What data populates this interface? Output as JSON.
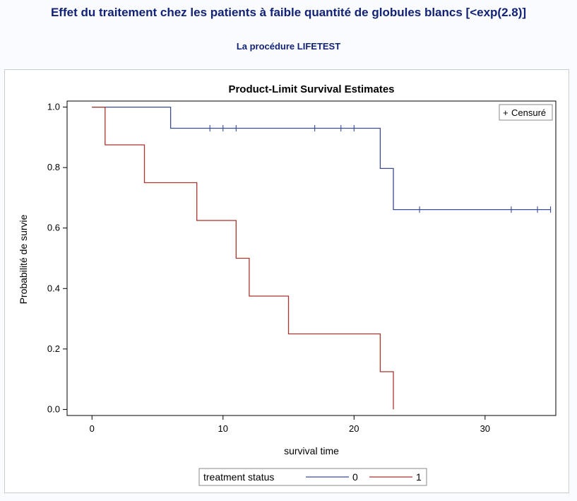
{
  "page": {
    "title": "Effet du traitement chez les patients à faible quantité de globules blancs [<exp(2.8)]",
    "subtitle": "La procédure LIFETEST"
  },
  "colors": {
    "title_text": "#112277",
    "series_0": "#3a4c94",
    "series_1": "#a8352e",
    "axis": "#000000",
    "frame_border": "#c8ccd6"
  },
  "chart_data": {
    "type": "line",
    "step": true,
    "title": "Product-Limit Survival Estimates",
    "xlabel": "survival time",
    "ylabel": "Probabilité de survie",
    "xlim": [
      -1.9,
      35.4
    ],
    "ylim": [
      -0.02,
      1.02
    ],
    "xticks": [
      0,
      10,
      20,
      30
    ],
    "yticks": [
      0.0,
      0.2,
      0.4,
      0.6,
      0.8,
      1.0
    ],
    "ytick_labels": [
      "0.0",
      "0.2",
      "0.4",
      "0.6",
      "0.8",
      "1.0"
    ],
    "grid": false,
    "censor_legend": {
      "symbol": "+",
      "label": "Censuré",
      "placement": "top-right"
    },
    "legend": {
      "title": "treatment status",
      "placement": "bottom-center"
    },
    "series": [
      {
        "name": "0",
        "color": "#3a4c94",
        "steps": [
          {
            "x": 0,
            "y": 1.0
          },
          {
            "x": 6,
            "y": 0.93
          },
          {
            "x": 22,
            "y": 0.797
          },
          {
            "x": 23,
            "y": 0.661
          },
          {
            "x": 35,
            "y": 0.661
          }
        ],
        "censored": [
          {
            "x": 9,
            "y": 0.93
          },
          {
            "x": 10,
            "y": 0.93
          },
          {
            "x": 11,
            "y": 0.93
          },
          {
            "x": 17,
            "y": 0.93
          },
          {
            "x": 19,
            "y": 0.93
          },
          {
            "x": 20,
            "y": 0.93
          },
          {
            "x": 25,
            "y": 0.661
          },
          {
            "x": 32,
            "y": 0.661
          },
          {
            "x": 34,
            "y": 0.661
          },
          {
            "x": 35,
            "y": 0.661
          }
        ]
      },
      {
        "name": "1",
        "color": "#a8352e",
        "steps": [
          {
            "x": 0,
            "y": 1.0
          },
          {
            "x": 1,
            "y": 0.875
          },
          {
            "x": 4,
            "y": 0.75
          },
          {
            "x": 8,
            "y": 0.625
          },
          {
            "x": 11,
            "y": 0.5
          },
          {
            "x": 12,
            "y": 0.375
          },
          {
            "x": 15,
            "y": 0.25
          },
          {
            "x": 22,
            "y": 0.125
          },
          {
            "x": 23,
            "y": 0.0
          }
        ],
        "censored": []
      }
    ]
  }
}
